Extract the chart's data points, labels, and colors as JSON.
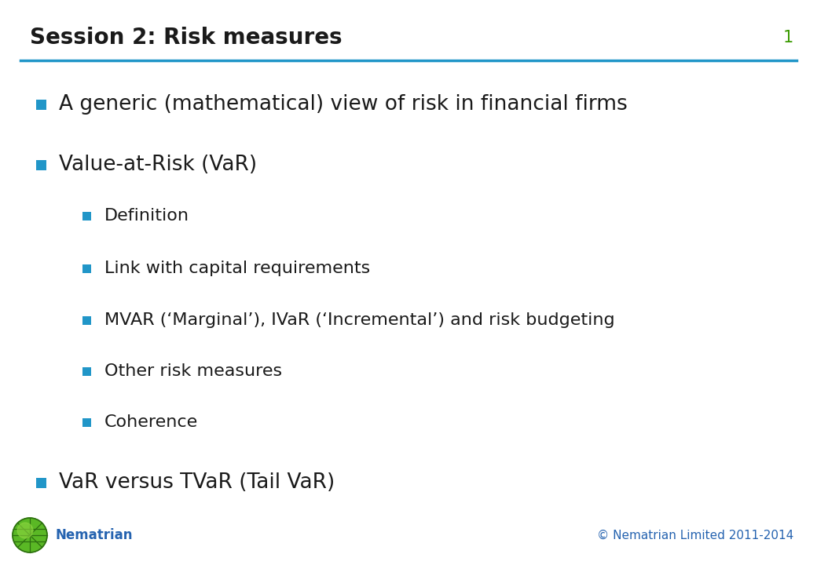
{
  "title": "Session 2: Risk measures",
  "slide_number": "1",
  "title_color": "#1a1a1a",
  "title_fontsize": 20,
  "line_color": "#2196c8",
  "background_color": "#ffffff",
  "slide_number_color": "#3a9a00",
  "slide_number_fontsize": 15,
  "copyright_text": "© Nematrian Limited 2011-2014",
  "copyright_color": "#2563b0",
  "copyright_fontsize": 11,
  "nematrian_text": "Nematrian",
  "nematrian_color": "#2563b0",
  "nematrian_fontsize": 12,
  "bullet_color": "#2196c8",
  "text_color": "#1a1a1a",
  "items": [
    {
      "text": "A generic (mathematical) view of risk in financial firms",
      "level": 0,
      "fontsize": 19
    },
    {
      "text": "Value-at-Risk (VaR)",
      "level": 0,
      "fontsize": 19
    },
    {
      "text": "Definition",
      "level": 1,
      "fontsize": 16
    },
    {
      "text": "Link with capital requirements",
      "level": 1,
      "fontsize": 16
    },
    {
      "text": "MVAR (‘Marginal’), IVaR (‘Incremental’) and risk budgeting",
      "level": 1,
      "fontsize": 16
    },
    {
      "text": "Other risk measures",
      "level": 1,
      "fontsize": 16
    },
    {
      "text": "Coherence",
      "level": 1,
      "fontsize": 16
    },
    {
      "text": "VaR versus TVaR (Tail VaR)",
      "level": 0,
      "fontsize": 19
    }
  ]
}
